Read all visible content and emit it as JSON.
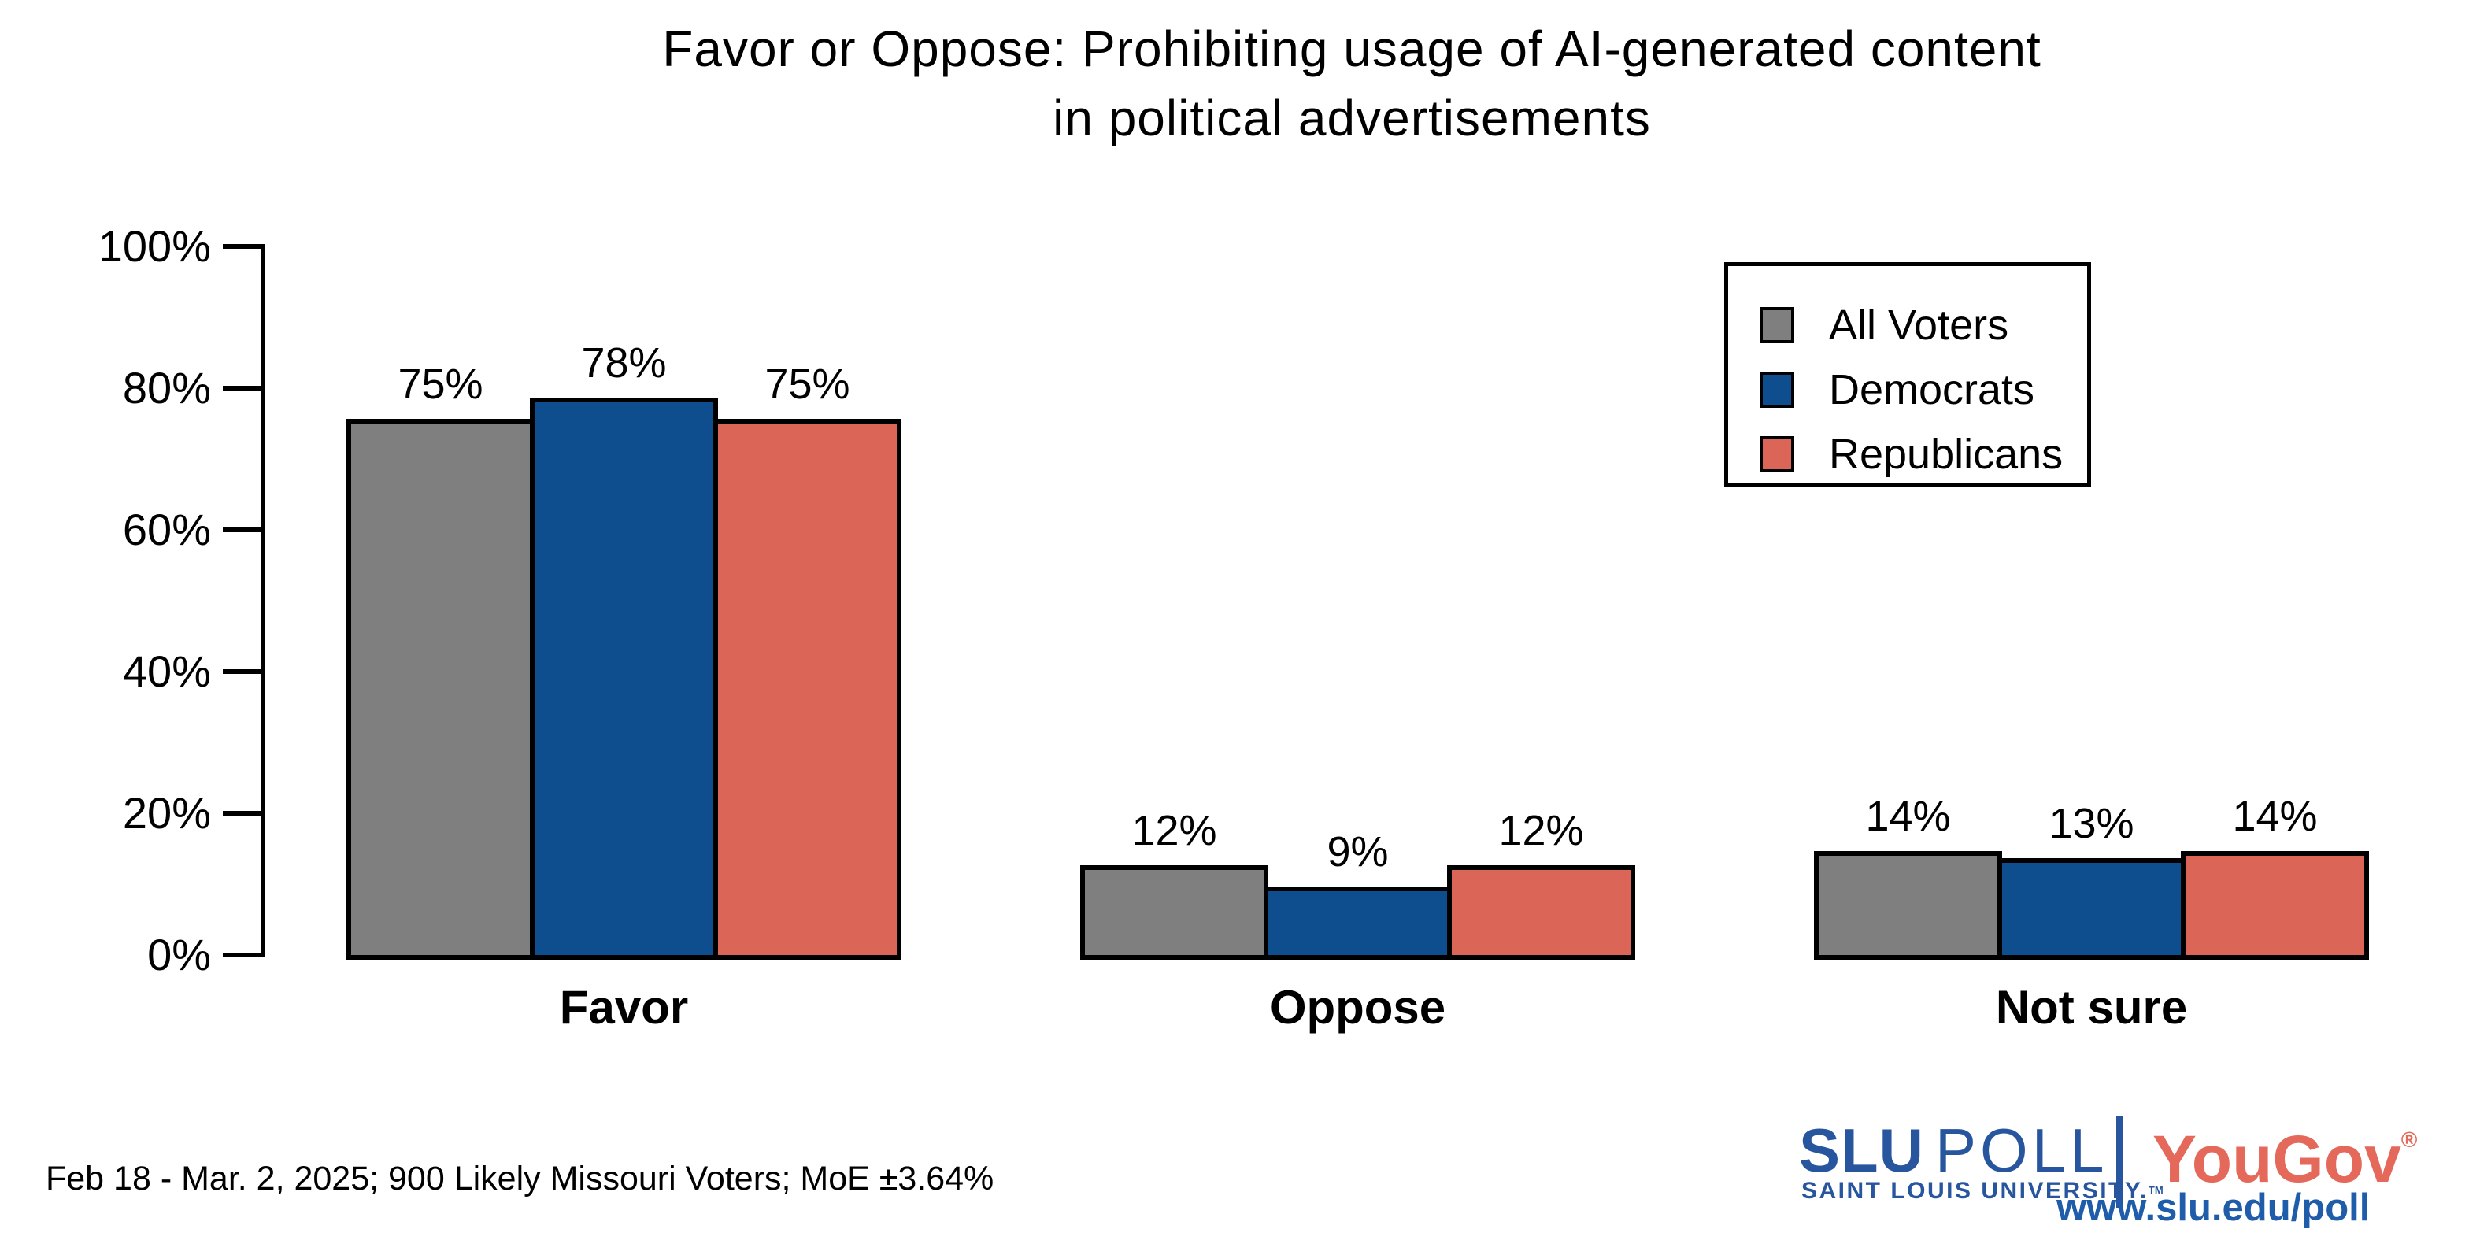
{
  "title": {
    "line1": "Favor or Oppose: Prohibiting usage of AI-generated content",
    "line2": "in political advertisements"
  },
  "chart_data": {
    "type": "bar",
    "categories": [
      "Favor",
      "Oppose",
      "Not sure"
    ],
    "series": [
      {
        "name": "All Voters",
        "color": "#7F7F7F",
        "values": [
          75,
          12,
          14
        ]
      },
      {
        "name": "Democrats",
        "color": "#0F4E8E",
        "values": [
          78,
          9,
          13
        ]
      },
      {
        "name": "Republicans",
        "color": "#DB6557",
        "values": [
          75,
          12,
          14
        ]
      }
    ],
    "value_suffix": "%",
    "xlabel": "",
    "ylabel": "",
    "ylim": [
      0,
      100
    ],
    "yticks": [
      "0%",
      "20%",
      "40%",
      "60%",
      "80%",
      "100%"
    ],
    "grid": false,
    "legend_position": "top-right",
    "bar_labels_shown": true
  },
  "legend": {
    "items": [
      {
        "label": "All Voters",
        "color": "#7F7F7F"
      },
      {
        "label": "Democrats",
        "color": "#0F4E8E"
      },
      {
        "label": "Republicans",
        "color": "#DB6557"
      }
    ]
  },
  "footnote": "Feb 18 - Mar. 2, 2025; 900 Likely Missouri Voters; MoE ±3.64%",
  "branding": {
    "slu_bold": "SLU",
    "slu_light": "POLL",
    "slu_sub": "SAINT LOUIS UNIVERSITY.",
    "slu_trademark": "TM",
    "yougov": "YouGov",
    "yougov_registered": "®",
    "url": "www.slu.edu/poll"
  },
  "colors": {
    "axis": "#000000",
    "logo_blue": "#27559E",
    "url_blue": "#1F5CA9",
    "yougov_red": "#E4695B"
  }
}
